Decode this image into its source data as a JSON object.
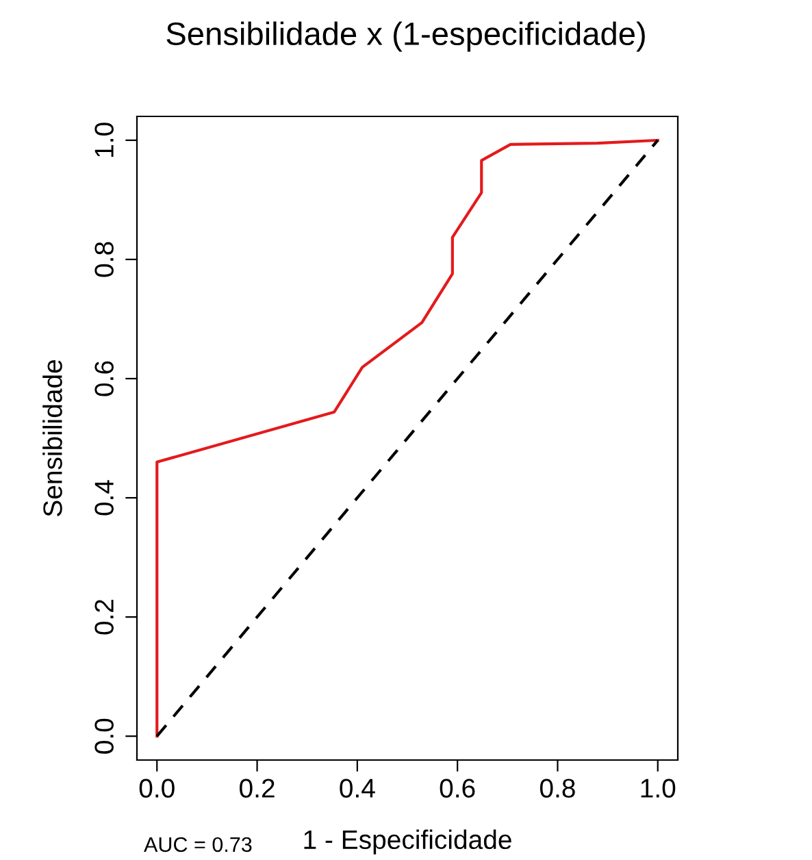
{
  "chart_data": {
    "type": "line",
    "title": "Sensibilidade x (1-especificidade)",
    "xlabel": "1 - Especificidade",
    "ylabel": "Sensibilidade",
    "series": [
      {
        "x": [
          0,
          0,
          0.354,
          0.41,
          0.529,
          0.59,
          0.59,
          0.648,
          0.648,
          0.706,
          0.879,
          1
        ],
        "values": [
          0,
          0.46,
          0.544,
          0.619,
          0.694,
          0.776,
          0.837,
          0.912,
          0.966,
          0.993,
          0.995,
          1
        ],
        "color": "#e41a1c",
        "line_style": "solid"
      },
      {
        "x": [
          0,
          1
        ],
        "values": [
          0,
          1
        ],
        "color": "#000000",
        "line_style": "dashed"
      }
    ],
    "xlim": [
      -0.04,
      1.04
    ],
    "ylim": [
      -0.04,
      1.04
    ],
    "xticks": [
      {
        "value": 0,
        "label": "0.0"
      },
      {
        "value": 0.2,
        "label": "0.2"
      },
      {
        "value": 0.4,
        "label": "0.4"
      },
      {
        "value": 0.6,
        "label": "0.6"
      },
      {
        "value": 0.8,
        "label": "0.8"
      },
      {
        "value": 1,
        "label": "1.0"
      }
    ],
    "yticks": [
      {
        "value": 0,
        "label": "0.0"
      },
      {
        "value": 0.2,
        "label": "0.2"
      },
      {
        "value": 0.4,
        "label": "0.4"
      },
      {
        "value": 0.6,
        "label": "0.6"
      },
      {
        "value": 0.8,
        "label": "0.8"
      },
      {
        "value": 1,
        "label": "1.0"
      }
    ],
    "grid": false,
    "annotations": [
      "AUC = 0.73"
    ]
  }
}
